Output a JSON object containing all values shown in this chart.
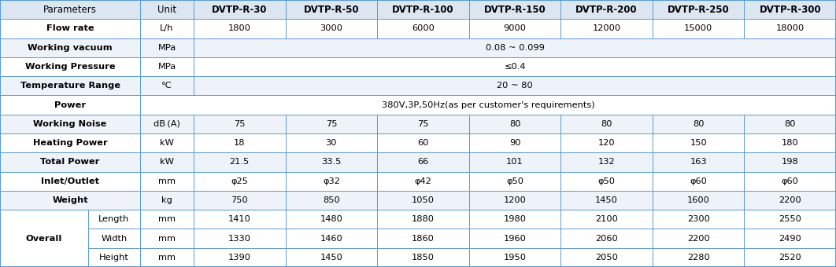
{
  "header": [
    "Parameters",
    "Unit",
    "DVTP-R-30",
    "DVTP-R-50",
    "DVTP-R-100",
    "DVTP-R-150",
    "DVTP-R-200",
    "DVTP-R-250",
    "DVTP-R-300"
  ],
  "rows": [
    {
      "param": "Flow rate",
      "sub": "",
      "unit": "L/h",
      "values": [
        "1800",
        "3000",
        "6000",
        "9000",
        "12000",
        "15000",
        "18000"
      ],
      "span_val": false,
      "no_unit": false
    },
    {
      "param": "Working vacuum",
      "sub": "",
      "unit": "MPa",
      "values": [
        "0.08 ~ 0.099",
        "",
        "",
        "",
        "",
        "",
        ""
      ],
      "span_val": true,
      "no_unit": false
    },
    {
      "param": "Working Pressure",
      "sub": "",
      "unit": "MPa",
      "values": [
        "≤0.4",
        "",
        "",
        "",
        "",
        "",
        ""
      ],
      "span_val": true,
      "no_unit": false
    },
    {
      "param": "Temperature Range",
      "sub": "",
      "unit": "°C",
      "values": [
        "20 ~ 80",
        "",
        "",
        "",
        "",
        "",
        ""
      ],
      "span_val": true,
      "no_unit": false
    },
    {
      "param": "Power",
      "sub": "",
      "unit": "",
      "values": [
        "380V,3P,50Hz(as per customer's requirements)",
        "",
        "",
        "",
        "",
        "",
        ""
      ],
      "span_val": true,
      "no_unit": true
    },
    {
      "param": "Working Noise",
      "sub": "",
      "unit": "dB (A)",
      "values": [
        "75",
        "75",
        "75",
        "80",
        "80",
        "80",
        "80"
      ],
      "span_val": false,
      "no_unit": false
    },
    {
      "param": "Heating Power",
      "sub": "",
      "unit": "kW",
      "values": [
        "18",
        "30",
        "60",
        "90",
        "120",
        "150",
        "180"
      ],
      "span_val": false,
      "no_unit": false
    },
    {
      "param": "Total Power",
      "sub": "",
      "unit": "kW",
      "values": [
        "21.5",
        "33.5",
        "66",
        "101",
        "132",
        "163",
        "198"
      ],
      "span_val": false,
      "no_unit": false
    },
    {
      "param": "Inlet/Outlet",
      "sub": "",
      "unit": "mm",
      "values": [
        "φ25",
        "φ32",
        "φ42",
        "φ50",
        "φ50",
        "φ60",
        "φ60"
      ],
      "span_val": false,
      "no_unit": false
    },
    {
      "param": "Weight",
      "sub": "",
      "unit": "kg",
      "values": [
        "750",
        "850",
        "1050",
        "1200",
        "1450",
        "1600",
        "2200"
      ],
      "span_val": false,
      "no_unit": false
    },
    {
      "param": "Overall",
      "sub": "Length",
      "unit": "mm",
      "values": [
        "1410",
        "1480",
        "1880",
        "1980",
        "2100",
        "2300",
        "2550"
      ],
      "span_val": false,
      "no_unit": false,
      "overall_first": true
    },
    {
      "param": "",
      "sub": "Width",
      "unit": "mm",
      "values": [
        "1330",
        "1460",
        "1860",
        "1960",
        "2060",
        "2200",
        "2490"
      ],
      "span_val": false,
      "no_unit": false,
      "overall_mid": true
    },
    {
      "param": "",
      "sub": "Height",
      "unit": "mm",
      "values": [
        "1390",
        "1450",
        "1850",
        "1950",
        "2050",
        "2280",
        "2520"
      ],
      "span_val": false,
      "no_unit": false,
      "overall_last": true
    }
  ],
  "header_bg": "#dce6f1",
  "alt_bg": "#eef3fa",
  "white_bg": "#ffffff",
  "border_color": "#5b9bd5",
  "header_text_color": "#000000",
  "text_color": "#000000",
  "bold_param_rows": [
    0,
    1,
    2,
    3,
    4,
    5,
    6,
    7,
    8,
    9
  ],
  "font_size": 8.2,
  "header_font_size": 8.5
}
